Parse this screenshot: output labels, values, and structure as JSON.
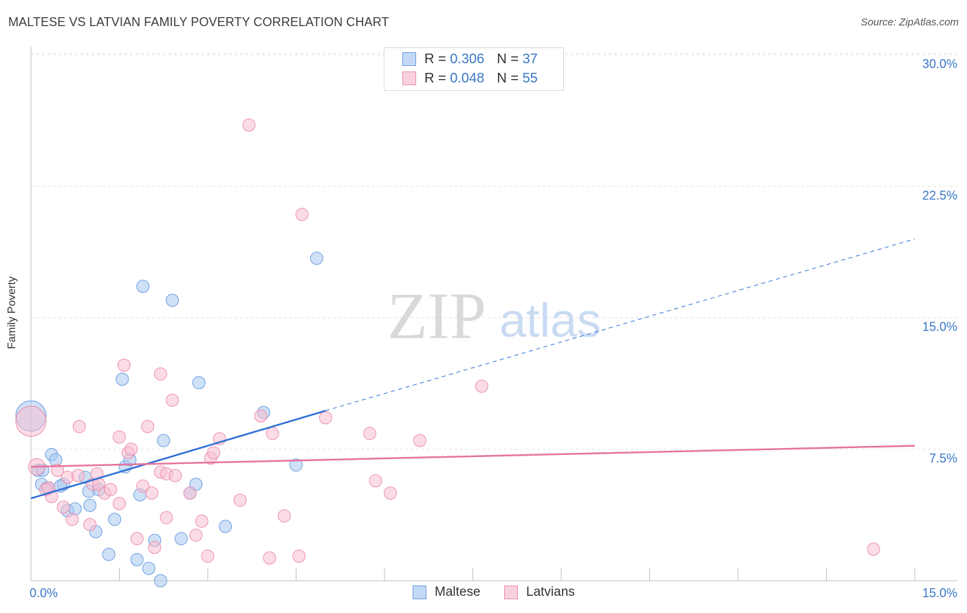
{
  "title": "MALTESE VS LATVIAN FAMILY POVERTY CORRELATION CHART",
  "source": "Source: ZipAtlas.com",
  "watermark": {
    "zip": "ZIP",
    "atlas": "atlas"
  },
  "legend_top": [
    {
      "r_label": "R =",
      "r_value": "0.306",
      "n_label": "N =",
      "n_value": "37",
      "color": "#a8c8f0",
      "border": "#6a9ee0"
    },
    {
      "r_label": "R =",
      "r_value": "0.048",
      "n_label": "N =",
      "n_value": "55",
      "color": "#f7c0d2",
      "border": "#ec8fae"
    }
  ],
  "legend_bottom": [
    "Maltese",
    "Latvians"
  ],
  "chart_data": {
    "type": "scatter",
    "title": "MALTESE VS LATVIAN FAMILY POVERTY CORRELATION CHART",
    "xlabel": "",
    "ylabel": "Family Poverty",
    "xlim": [
      0,
      15
    ],
    "ylim": [
      0,
      30
    ],
    "x_tick_labels": [
      "0.0%",
      "15.0%"
    ],
    "y_ticks": [
      7.5,
      15.0,
      22.5,
      30.0
    ],
    "y_tick_labels": [
      "7.5%",
      "15.0%",
      "22.5%",
      "30.0%"
    ],
    "series": [
      {
        "name": "Maltese",
        "color": "#a8c8f0",
        "stroke": "#6a9ee0",
        "trend": {
          "x0": 0,
          "y0": 4.7,
          "x1": 5.0,
          "y1": 9.7,
          "dash_to_x": 15.0,
          "dash_to_y": 19.5,
          "color": "#2e6fd6"
        },
        "points": [
          [
            0.0,
            9.4,
            22
          ],
          [
            0.12,
            6.3,
            9
          ],
          [
            0.18,
            5.5,
            9
          ],
          [
            0.28,
            5.3,
            9
          ],
          [
            0.35,
            7.2,
            9
          ],
          [
            0.42,
            6.9,
            9
          ],
          [
            0.55,
            5.5,
            9
          ],
          [
            0.62,
            4.0,
            9
          ],
          [
            0.75,
            4.1,
            9
          ],
          [
            0.92,
            5.9,
            9
          ],
          [
            0.98,
            5.1,
            9
          ],
          [
            1.1,
            2.8,
            9
          ],
          [
            1.15,
            5.2,
            9
          ],
          [
            1.32,
            1.5,
            9
          ],
          [
            1.42,
            3.5,
            9
          ],
          [
            1.55,
            11.5,
            9
          ],
          [
            1.6,
            6.5,
            9
          ],
          [
            1.68,
            6.9,
            9
          ],
          [
            1.8,
            1.2,
            9
          ],
          [
            1.85,
            4.9,
            9
          ],
          [
            1.9,
            16.8,
            9
          ],
          [
            2.0,
            0.7,
            9
          ],
          [
            2.1,
            2.3,
            9
          ],
          [
            2.25,
            8.0,
            9
          ],
          [
            2.4,
            16.0,
            9
          ],
          [
            2.55,
            2.4,
            9
          ],
          [
            2.7,
            5.0,
            9
          ],
          [
            2.8,
            5.5,
            9
          ],
          [
            2.85,
            11.3,
            9
          ],
          [
            3.3,
            3.1,
            9
          ],
          [
            3.95,
            9.6,
            9
          ],
          [
            4.5,
            6.6,
            9
          ],
          [
            4.85,
            18.4,
            9
          ],
          [
            2.2,
            0.0,
            9
          ],
          [
            0.2,
            6.3,
            9
          ],
          [
            0.5,
            5.4,
            9
          ],
          [
            1.0,
            4.3,
            9
          ]
        ]
      },
      {
        "name": "Latvians",
        "color": "#f7c0d2",
        "stroke": "#ec8fae",
        "trend": {
          "x0": 0,
          "y0": 6.5,
          "x1": 15.0,
          "y1": 7.7,
          "color": "#e7739c"
        },
        "points": [
          [
            0.0,
            9.1,
            22
          ],
          [
            0.1,
            6.5,
            12
          ],
          [
            0.3,
            5.3,
            9
          ],
          [
            0.35,
            4.8,
            9
          ],
          [
            0.45,
            6.3,
            9
          ],
          [
            0.55,
            4.2,
            9
          ],
          [
            0.62,
            5.9,
            9
          ],
          [
            0.7,
            3.5,
            9
          ],
          [
            0.8,
            6.0,
            9
          ],
          [
            0.82,
            8.8,
            9
          ],
          [
            1.0,
            3.2,
            9
          ],
          [
            1.05,
            5.5,
            9
          ],
          [
            1.12,
            6.1,
            9
          ],
          [
            1.15,
            5.5,
            9
          ],
          [
            1.25,
            5.0,
            9
          ],
          [
            1.35,
            5.2,
            9
          ],
          [
            1.5,
            4.4,
            9
          ],
          [
            1.5,
            8.2,
            9
          ],
          [
            1.58,
            12.3,
            9
          ],
          [
            1.65,
            7.3,
            9
          ],
          [
            1.7,
            7.5,
            9
          ],
          [
            1.8,
            2.4,
            9
          ],
          [
            1.9,
            5.4,
            9
          ],
          [
            1.98,
            8.8,
            9
          ],
          [
            2.05,
            5.0,
            9
          ],
          [
            2.1,
            1.9,
            9
          ],
          [
            2.2,
            6.2,
            9
          ],
          [
            2.2,
            11.8,
            9
          ],
          [
            2.3,
            6.1,
            9
          ],
          [
            2.3,
            3.6,
            9
          ],
          [
            2.4,
            10.3,
            9
          ],
          [
            2.45,
            6.0,
            9
          ],
          [
            2.7,
            5.0,
            9
          ],
          [
            2.8,
            2.6,
            9
          ],
          [
            2.9,
            3.4,
            9
          ],
          [
            3.0,
            1.4,
            9
          ],
          [
            3.05,
            7.0,
            9
          ],
          [
            3.1,
            7.3,
            9
          ],
          [
            3.2,
            8.1,
            9
          ],
          [
            3.55,
            4.6,
            9
          ],
          [
            3.7,
            26.0,
            9
          ],
          [
            3.9,
            9.4,
            9
          ],
          [
            4.05,
            1.3,
            9
          ],
          [
            4.1,
            8.4,
            9
          ],
          [
            4.3,
            3.7,
            9
          ],
          [
            4.55,
            1.4,
            9
          ],
          [
            4.6,
            20.9,
            9
          ],
          [
            5.0,
            9.3,
            9
          ],
          [
            5.75,
            8.4,
            9
          ],
          [
            5.85,
            5.7,
            9
          ],
          [
            6.1,
            5.0,
            9
          ],
          [
            6.6,
            8.0,
            9
          ],
          [
            7.65,
            11.1,
            9
          ],
          [
            14.3,
            1.8,
            9
          ],
          [
            0.25,
            5.2,
            9
          ]
        ]
      }
    ]
  }
}
